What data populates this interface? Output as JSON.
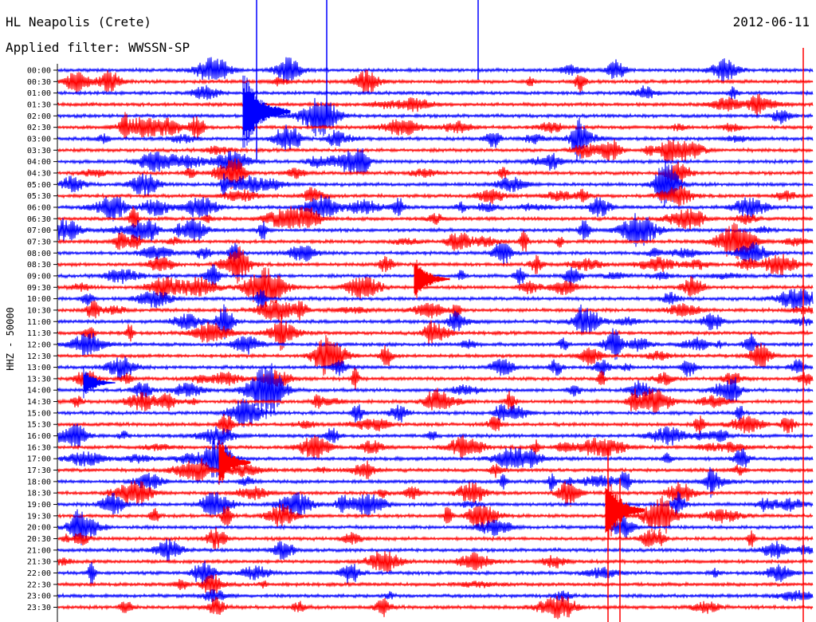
{
  "header": {
    "station": "HL Neapolis (Crete)",
    "filter": "Applied filter: WWSSN-SP",
    "date": "2012-06-11"
  },
  "chart_data": {
    "type": "line",
    "title": "HL Neapolis (Crete)",
    "subtitle": "Applied filter: WWSSN-SP",
    "ylabel": "HHZ - 50000",
    "xlabel": "",
    "trace_colors": [
      "#0000ff",
      "#ff0000"
    ],
    "categories": [
      "00:00",
      "00:30",
      "01:00",
      "01:30",
      "02:00",
      "02:30",
      "03:00",
      "03:30",
      "04:00",
      "04:30",
      "05:00",
      "05:30",
      "06:00",
      "06:30",
      "07:00",
      "07:30",
      "08:00",
      "08:30",
      "09:00",
      "09:30",
      "10:00",
      "10:30",
      "11:00",
      "11:30",
      "12:00",
      "12:30",
      "13:00",
      "13:30",
      "14:00",
      "14:30",
      "15:00",
      "15:30",
      "16:00",
      "16:30",
      "17:00",
      "17:30",
      "18:00",
      "18:30",
      "19:00",
      "19:30",
      "20:00",
      "20:30",
      "21:00",
      "21:30",
      "22:00",
      "22:30",
      "23:00",
      "23:30"
    ],
    "grid": false,
    "legend": "none"
  }
}
